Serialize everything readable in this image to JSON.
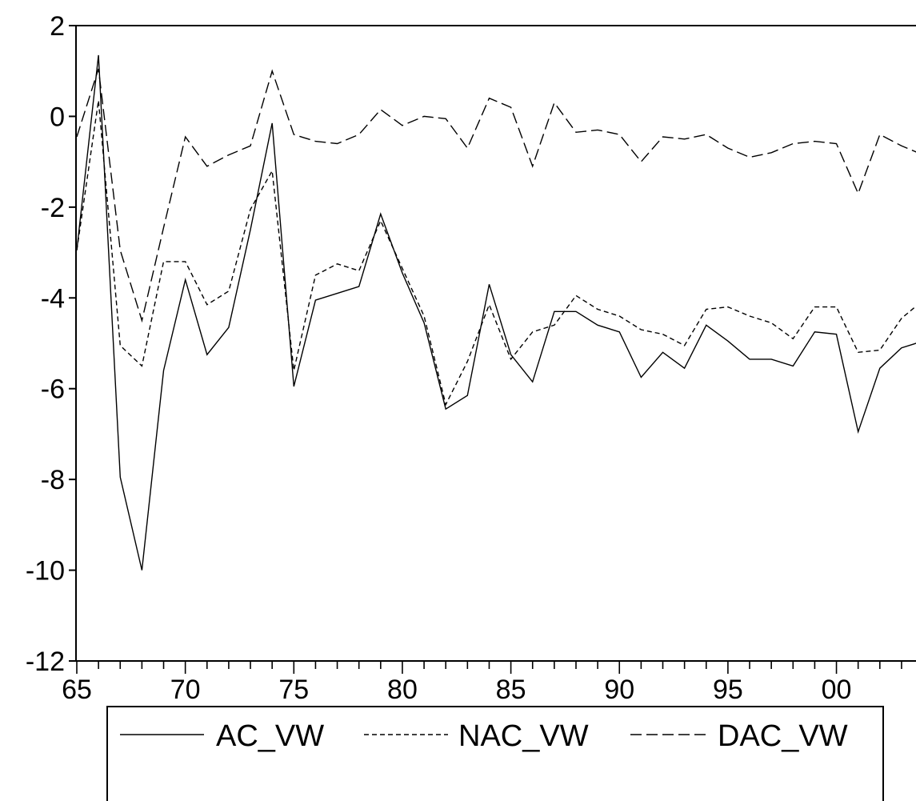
{
  "chart_data": {
    "type": "line",
    "title": "",
    "xlabel": "",
    "ylabel": "",
    "ylim": [
      -12,
      2
    ],
    "xlim": [
      1965,
      2004
    ],
    "yticks": [
      2,
      0,
      -2,
      -4,
      -6,
      -8,
      -10,
      -12
    ],
    "ytick_labels": [
      "2",
      "0",
      "-2",
      "-4",
      "-6",
      "-8",
      "-10",
      "-12"
    ],
    "xticks": [
      1965,
      1970,
      1975,
      1980,
      1985,
      1990,
      1995,
      2000
    ],
    "xtick_labels": [
      "65",
      "70",
      "75",
      "80",
      "85",
      "90",
      "95",
      "00"
    ],
    "grid": false,
    "legend_position": "bottom",
    "x": [
      1965,
      1966,
      1967,
      1968,
      1969,
      1970,
      1971,
      1972,
      1973,
      1974,
      1975,
      1976,
      1977,
      1978,
      1979,
      1980,
      1981,
      1982,
      1983,
      1984,
      1985,
      1986,
      1987,
      1988,
      1989,
      1990,
      1991,
      1992,
      1993,
      1994,
      1995,
      1996,
      1997,
      1998,
      1999,
      2000,
      2001,
      2002,
      2003,
      2004
    ],
    "series": [
      {
        "name": "AC_VW",
        "style": "solid",
        "values": [
          -2.95,
          1.35,
          -7.95,
          -10.0,
          -5.6,
          -3.6,
          -5.25,
          -4.65,
          -2.5,
          -0.15,
          -5.95,
          -4.05,
          -3.9,
          -3.75,
          -2.15,
          -3.45,
          -4.55,
          -6.45,
          -6.15,
          -3.7,
          -5.25,
          -5.85,
          -4.3,
          -4.3,
          -4.6,
          -4.75,
          -5.75,
          -5.2,
          -5.55,
          -4.6,
          -4.95,
          -5.35,
          -5.35,
          -5.5,
          -4.75,
          -4.8,
          -6.95,
          -5.55,
          -5.1,
          -4.95
        ]
      },
      {
        "name": "NAC_VW",
        "style": "short-dash",
        "values": [
          -2.95,
          0.35,
          -5.05,
          -5.5,
          -3.2,
          -3.2,
          -4.15,
          -3.85,
          -2.05,
          -1.2,
          -5.6,
          -3.5,
          -3.25,
          -3.4,
          -2.3,
          -3.35,
          -4.4,
          -6.35,
          -5.4,
          -4.15,
          -5.35,
          -4.75,
          -4.6,
          -3.95,
          -4.25,
          -4.4,
          -4.7,
          -4.8,
          -5.05,
          -4.25,
          -4.2,
          -4.4,
          -4.55,
          -4.9,
          -4.2,
          -4.2,
          -5.2,
          -5.15,
          -4.45,
          -4.05
        ]
      },
      {
        "name": "DAC_VW",
        "style": "long-dash",
        "values": [
          -0.45,
          1.05,
          -2.95,
          -4.5,
          -2.45,
          -0.45,
          -1.1,
          -0.85,
          -0.65,
          1.0,
          -0.4,
          -0.55,
          -0.6,
          -0.4,
          0.15,
          -0.2,
          0.0,
          -0.05,
          -0.7,
          0.4,
          0.2,
          -1.1,
          0.3,
          -0.35,
          -0.3,
          -0.4,
          -1.0,
          -0.45,
          -0.5,
          -0.4,
          -0.7,
          -0.9,
          -0.8,
          -0.6,
          -0.55,
          -0.6,
          -1.7,
          -0.4,
          -0.65,
          -0.85
        ]
      }
    ]
  }
}
